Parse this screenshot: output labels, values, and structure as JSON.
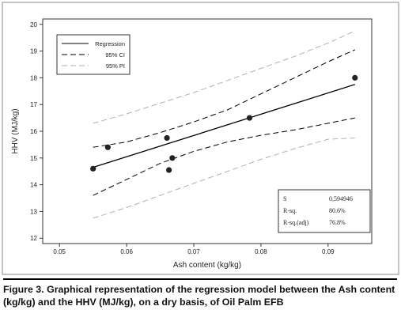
{
  "chart_data": {
    "type": "scatter",
    "xlabel": "Ash content (kg/kg)",
    "ylabel": "HHV (MJ/kg)",
    "xlim": [
      0.0475,
      0.0965
    ],
    "ylim": [
      11.8,
      20.2
    ],
    "xticks": [
      0.05,
      0.06,
      0.07,
      0.08,
      0.09
    ],
    "xtick_labels": [
      "0.05",
      "0.06",
      "0.07",
      "0.08",
      "0.09"
    ],
    "yticks": [
      12,
      13,
      14,
      15,
      16,
      17,
      18,
      19,
      20
    ],
    "ytick_labels": [
      "12",
      "13",
      "14",
      "15",
      "16",
      "17",
      "18",
      "19",
      "20"
    ],
    "points": [
      {
        "x": 0.055,
        "y": 14.6
      },
      {
        "x": 0.0572,
        "y": 15.4
      },
      {
        "x": 0.066,
        "y": 15.75
      },
      {
        "x": 0.0663,
        "y": 14.55
      },
      {
        "x": 0.0668,
        "y": 15.0
      },
      {
        "x": 0.0783,
        "y": 16.5
      },
      {
        "x": 0.094,
        "y": 18.0
      }
    ],
    "series": [
      {
        "name": "Regression",
        "style": "solid",
        "color": "#000000",
        "x": [
          0.055,
          0.094
        ],
        "y": [
          14.65,
          17.75
        ]
      },
      {
        "name": "95% CI",
        "style": "dashed",
        "color": "#000000",
        "band": "upper",
        "x": [
          0.055,
          0.06,
          0.065,
          0.07,
          0.075,
          0.08,
          0.085,
          0.09,
          0.094
        ],
        "y": [
          15.4,
          15.6,
          15.95,
          16.35,
          16.8,
          17.4,
          18.0,
          18.6,
          19.05
        ]
      },
      {
        "name": "95% CI",
        "style": "dashed",
        "color": "#000000",
        "band": "lower",
        "x": [
          0.055,
          0.06,
          0.065,
          0.07,
          0.075,
          0.08,
          0.085,
          0.09,
          0.094
        ],
        "y": [
          13.6,
          14.2,
          14.8,
          15.25,
          15.6,
          15.85,
          16.05,
          16.3,
          16.5
        ]
      },
      {
        "name": "95% PI",
        "style": "dashed",
        "color": "#b0b0b0",
        "band": "upper",
        "x": [
          0.055,
          0.06,
          0.065,
          0.07,
          0.075,
          0.08,
          0.085,
          0.09,
          0.094
        ],
        "y": [
          16.3,
          16.65,
          17.05,
          17.45,
          17.9,
          18.35,
          18.8,
          19.3,
          19.75
        ]
      },
      {
        "name": "95% PI",
        "style": "dashed",
        "color": "#b0b0b0",
        "band": "lower",
        "x": [
          0.055,
          0.06,
          0.065,
          0.07,
          0.075,
          0.08,
          0.085,
          0.09,
          0.094
        ],
        "y": [
          12.75,
          13.15,
          13.6,
          14.05,
          14.5,
          14.95,
          15.35,
          15.7,
          15.75
        ]
      }
    ],
    "legend": {
      "placement": "top-left",
      "entries": [
        {
          "label": "Regression",
          "style": "solid",
          "color": "#000000"
        },
        {
          "label": "95% CI",
          "style": "dashed",
          "color": "#000000"
        },
        {
          "label": "95% PI",
          "style": "dashed",
          "color": "#b0b0b0"
        }
      ]
    },
    "stats": {
      "placement": "bottom-right",
      "rows": [
        {
          "label": "S",
          "value": "0,594946"
        },
        {
          "label": "R-sq.",
          "value": "80.6%"
        },
        {
          "label": "R-sq.(adj)",
          "value": "76.8%"
        }
      ]
    },
    "grid": false
  },
  "caption": "Figure 3. Graphical representation of the regression model between the Ash content (kg/kg) and the HHV (MJ/kg), on a dry basis, of Oil Palm EFB"
}
